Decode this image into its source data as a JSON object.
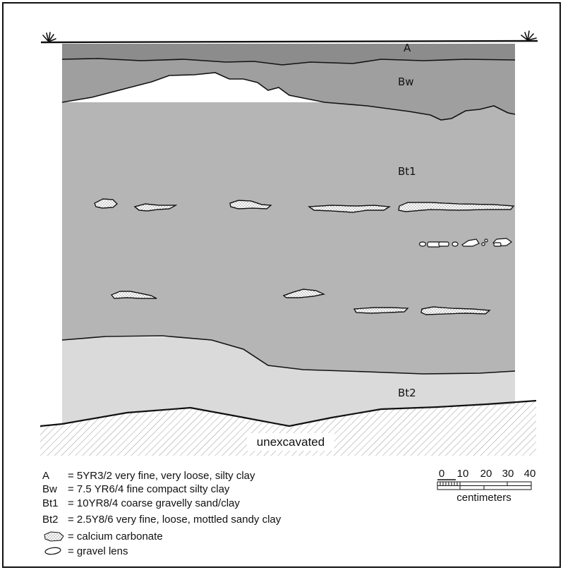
{
  "profile": {
    "horizons": [
      {
        "label": "A",
        "color": "#8c8c8c"
      },
      {
        "label": "Bw",
        "color": "#9f9f9f"
      },
      {
        "label": "Bt1",
        "color": "#b5b5b5"
      },
      {
        "label": "Bt2",
        "color": "#dadada"
      }
    ],
    "unexcavated_label": "unexcavated"
  },
  "legend": {
    "entries": [
      {
        "key": "A",
        "text": "= 5YR3/2 very fine, very loose, silty clay"
      },
      {
        "key": "Bw",
        "text": "= 7.5 YR6/4 fine compact silty clay"
      },
      {
        "key": "Bt1",
        "text": "= 10YR8/4 coarse gravelly sand/clay"
      },
      {
        "key": "Bt2",
        "text": "= 2.5Y8/6 very fine, loose, mottled sandy clay"
      }
    ],
    "symbols": [
      {
        "icon": "calcium-carbonate-icon",
        "text": "= calcium carbonate"
      },
      {
        "icon": "gravel-lens-icon",
        "text": "= gravel lens"
      }
    ]
  },
  "scale": {
    "ticks": [
      "0",
      "10",
      "20",
      "30",
      "40"
    ],
    "unit": "centimeters"
  }
}
